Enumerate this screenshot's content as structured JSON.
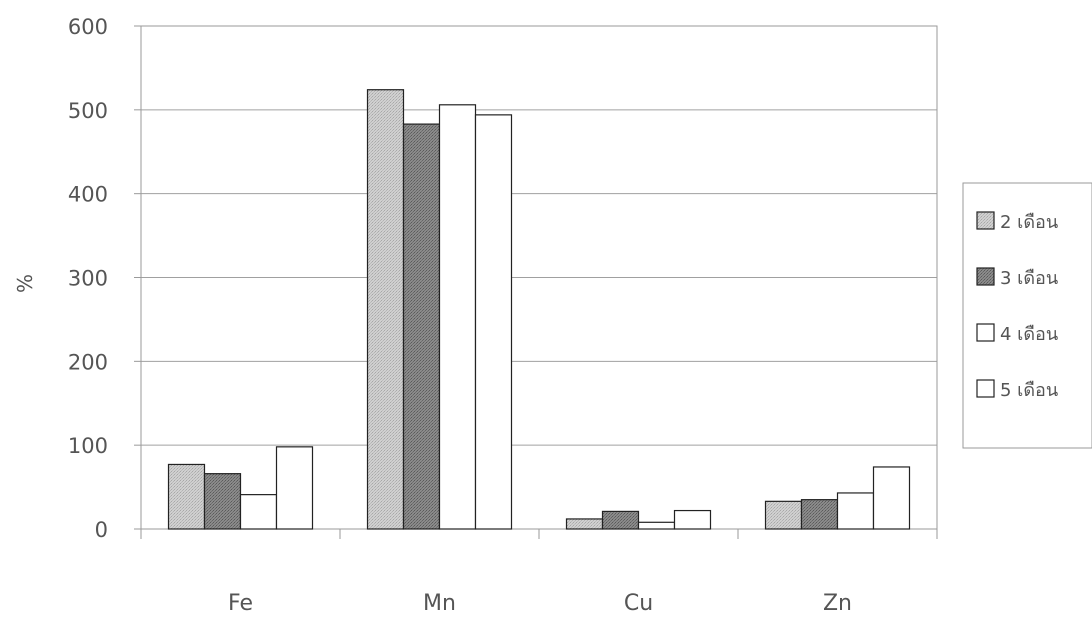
{
  "chart_data": {
    "type": "bar",
    "title": "",
    "xlabel": "",
    "ylabel": "%",
    "ylim": [
      0,
      600
    ],
    "yticks": [
      0,
      100,
      200,
      300,
      400,
      500,
      600
    ],
    "grid": true,
    "legend_position": "right",
    "categories": [
      "Fe",
      "Mn",
      "Cu",
      "Zn"
    ],
    "series": [
      {
        "name": "2 เดือน",
        "values": [
          77,
          524,
          12,
          33
        ],
        "color": "#c8c8c8",
        "pattern": "light-dotted"
      },
      {
        "name": "3 เดือน",
        "values": [
          66,
          483,
          21,
          35
        ],
        "color": "#808080",
        "pattern": "dark-dotted"
      },
      {
        "name": "4 เดือน",
        "values": [
          41,
          506,
          8,
          43
        ],
        "color": "#ffffff",
        "pattern": "none"
      },
      {
        "name": "5 เดือน",
        "values": [
          98,
          494,
          22,
          74
        ],
        "color": "#ffffff",
        "pattern": "none"
      }
    ]
  }
}
